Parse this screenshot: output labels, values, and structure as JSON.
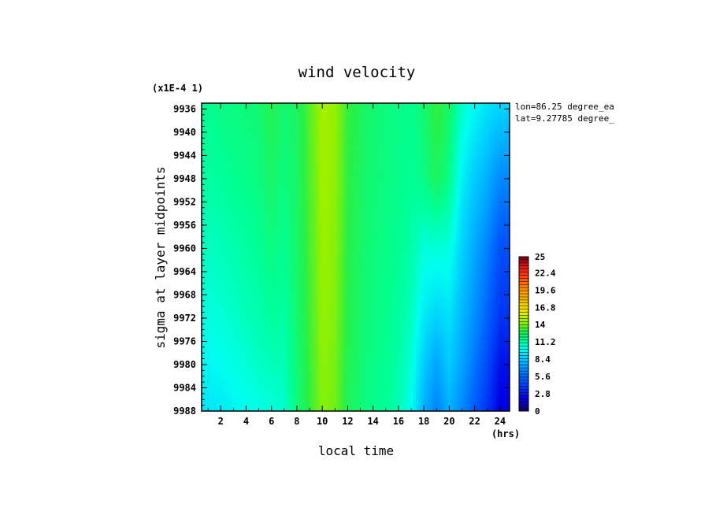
{
  "chart_data": {
    "type": "heatmap",
    "title": "wind velocity",
    "xlabel": "local time",
    "x_unit": "(hrs)",
    "ylabel": "sigma at layer midpoints",
    "y_scale_note": "(x1E-4 1)",
    "annotations": [
      "lon=86.25 degree_ea",
      "lat=9.27785 degree_"
    ],
    "xlim": [
      0.5,
      24.75
    ],
    "x_ticks": [
      "2",
      "4",
      "6",
      "8",
      "10",
      "12",
      "14",
      "16",
      "18",
      "20",
      "22",
      "24"
    ],
    "ylim": [
      9935,
      9988
    ],
    "y_ticks": [
      "9936",
      "9940",
      "9944",
      "9948",
      "9952",
      "9956",
      "9960",
      "9964",
      "9968",
      "9972",
      "9976",
      "9980",
      "9984",
      "9988"
    ],
    "colorbar": {
      "min": 0,
      "max": 25,
      "tick_labels": [
        "25",
        "22.4",
        "19.6",
        "16.8",
        "14",
        "11.2",
        "8.4",
        "5.6",
        "2.8",
        "0"
      ]
    },
    "x": [
      1,
      2,
      3,
      4,
      5,
      6,
      7,
      8,
      9,
      10,
      11,
      12,
      13,
      14,
      15,
      16,
      17,
      18,
      19,
      20,
      21,
      22,
      23,
      24
    ],
    "y": [
      9936,
      9948,
      9960,
      9972,
      9980,
      9988
    ],
    "z": [
      [
        11.6,
        11.8,
        11.9,
        12.0,
        12.2,
        12.8,
        12.2,
        12.5,
        13.6,
        14.8,
        14.5,
        13.2,
        12.6,
        12.2,
        12.0,
        11.8,
        11.6,
        12.2,
        13.2,
        12.3,
        10.6,
        9.8,
        9.2,
        8.8
      ],
      [
        11.3,
        11.4,
        11.6,
        11.7,
        11.9,
        12.4,
        11.9,
        12.4,
        13.5,
        14.7,
        14.4,
        13.1,
        12.5,
        12.1,
        11.9,
        11.7,
        11.5,
        11.8,
        12.6,
        11.7,
        9.6,
        8.6,
        7.8,
        6.6
      ],
      [
        10.8,
        10.9,
        11.1,
        11.3,
        11.5,
        11.9,
        11.6,
        12.3,
        13.4,
        14.6,
        14.3,
        13.0,
        12.4,
        12.0,
        11.8,
        11.6,
        11.2,
        10.4,
        10.4,
        10.3,
        8.8,
        7.6,
        6.4,
        4.8
      ],
      [
        10.3,
        10.4,
        10.6,
        10.9,
        11.1,
        11.4,
        11.3,
        12.2,
        13.3,
        14.5,
        14.2,
        12.9,
        12.3,
        11.9,
        11.7,
        11.4,
        10.8,
        9.4,
        8.8,
        9.2,
        8.0,
        6.8,
        5.4,
        3.8
      ],
      [
        9.8,
        10.0,
        10.2,
        10.4,
        10.7,
        10.9,
        11.0,
        12.1,
        13.2,
        14.4,
        14.1,
        12.8,
        12.2,
        11.8,
        11.6,
        11.2,
        10.4,
        8.6,
        7.4,
        8.6,
        7.4,
        6.0,
        4.6,
        2.6
      ],
      [
        9.3,
        9.4,
        9.7,
        9.9,
        10.2,
        10.3,
        10.6,
        12.0,
        13.1,
        14.3,
        14.0,
        12.7,
        12.1,
        11.7,
        11.5,
        11.0,
        10.0,
        7.8,
        6.4,
        7.8,
        6.6,
        5.2,
        3.8,
        1.8
      ]
    ]
  }
}
